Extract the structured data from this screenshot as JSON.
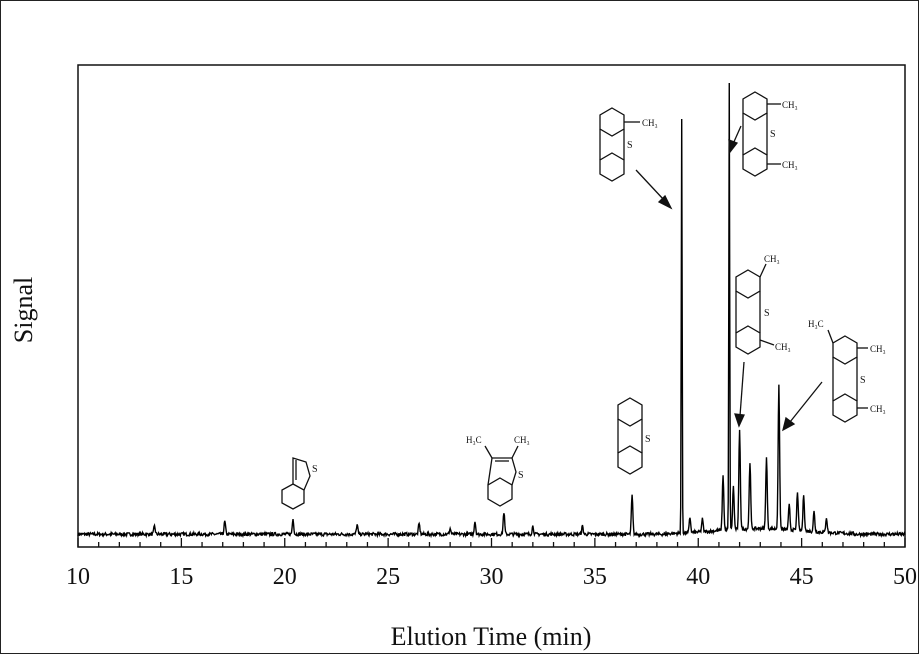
{
  "chart_data": {
    "type": "line",
    "title": "",
    "xlabel": "Elution Time (min)",
    "ylabel": "Signal",
    "xlim": [
      10,
      50
    ],
    "ylim": [
      0,
      100
    ],
    "xticks": [
      10,
      15,
      20,
      25,
      30,
      35,
      40,
      45,
      50
    ],
    "xtick_labels": [
      "10",
      "15",
      "20",
      "25",
      "30",
      "35",
      "40",
      "45",
      "50"
    ],
    "y_tick_labels_shown": false,
    "grid": false,
    "legend": "none",
    "baseline": 0.8,
    "peaks": [
      {
        "x": 13.7,
        "y": 2.5
      },
      {
        "x": 17.1,
        "y": 3.5
      },
      {
        "x": 20.4,
        "y": 4.0
      },
      {
        "x": 23.5,
        "y": 2.8
      },
      {
        "x": 26.5,
        "y": 3.0
      },
      {
        "x": 28.0,
        "y": 2.0
      },
      {
        "x": 29.2,
        "y": 3.5
      },
      {
        "x": 30.6,
        "y": 5.5
      },
      {
        "x": 32.0,
        "y": 2.5
      },
      {
        "x": 34.4,
        "y": 2.5
      },
      {
        "x": 36.8,
        "y": 9.0
      },
      {
        "x": 39.2,
        "y": 88.0
      },
      {
        "x": 39.6,
        "y": 4.0
      },
      {
        "x": 40.2,
        "y": 3.5
      },
      {
        "x": 41.2,
        "y": 12.5
      },
      {
        "x": 41.5,
        "y": 95.0
      },
      {
        "x": 41.7,
        "y": 10.0
      },
      {
        "x": 42.0,
        "y": 22.0
      },
      {
        "x": 42.5,
        "y": 15.0
      },
      {
        "x": 43.3,
        "y": 16.0
      },
      {
        "x": 43.9,
        "y": 31.0
      },
      {
        "x": 44.4,
        "y": 6.0
      },
      {
        "x": 44.8,
        "y": 9.0
      },
      {
        "x": 45.1,
        "y": 8.5
      },
      {
        "x": 45.6,
        "y": 5.0
      },
      {
        "x": 46.2,
        "y": 4.0
      }
    ],
    "annotations": [
      {
        "peak_x": 20.4,
        "labels": [
          "S"
        ]
      },
      {
        "peak_x": 30.6,
        "labels": [
          "H₃C",
          "CH₃",
          "S"
        ]
      },
      {
        "peak_x": 36.8,
        "labels": [
          "S"
        ]
      },
      {
        "peak_x": 39.2,
        "labels": [
          "CH₃",
          "S"
        ]
      },
      {
        "peak_x": 41.5,
        "labels": [
          "CH₃",
          "S",
          "CH₃"
        ]
      },
      {
        "peak_x": 42.0,
        "labels": [
          "CH₃",
          "S",
          "CH₃"
        ]
      },
      {
        "peak_x": 43.9,
        "labels": [
          "H₃C",
          "CH₃",
          "S",
          "CH₃"
        ]
      }
    ]
  }
}
